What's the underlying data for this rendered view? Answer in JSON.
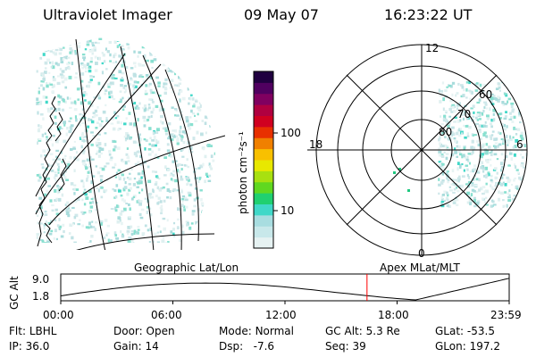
{
  "header": {
    "instrument": "Ultraviolet Imager",
    "date": "09 May 07",
    "time": "16:23:22 UT"
  },
  "colorbar": {
    "unit_label": "photon cm⁻²s⁻¹",
    "ticks": [
      {
        "label": "100",
        "value": 100
      },
      {
        "label": "10",
        "value": 10
      }
    ],
    "colors": [
      "#e6f2f2",
      "#c8e8ea",
      "#a8dde0",
      "#40d8c8",
      "#20d070",
      "#60d820",
      "#a8e010",
      "#e8e800",
      "#f8c000",
      "#f08000",
      "#e83000",
      "#d00020",
      "#b00040",
      "#800060",
      "#500060",
      "#200040"
    ]
  },
  "polar_plot": {
    "clock_labels": [
      {
        "label": "12",
        "mlt": 12
      },
      {
        "label": "18",
        "mlt": 18
      },
      {
        "label": "6",
        "mlt": 6
      },
      {
        "label": "0",
        "mlt": 0
      }
    ],
    "lat_labels": [
      {
        "label": "60",
        "lat": 60
      },
      {
        "label": "70",
        "lat": 70
      },
      {
        "label": "80",
        "lat": 80
      }
    ]
  },
  "timeline": {
    "left_label": "Geographic Lat/Lon",
    "right_label": "Apex MLat/MLT",
    "axis_title": "GC Alt",
    "y_ticks": [
      {
        "label": "9.0",
        "value": 9.0
      },
      {
        "label": "1.8",
        "value": 1.8
      }
    ],
    "x_ticks": [
      "00:00",
      "06:00",
      "12:00",
      "18:00",
      "23:59"
    ],
    "current_time_hours": 16.39
  },
  "footer": {
    "row1": [
      {
        "key": "Flt:",
        "value": "LBHL"
      },
      {
        "key": "Door:",
        "value": "Open"
      },
      {
        "key": "Mode:",
        "value": "Normal"
      },
      {
        "key": "GC Alt:",
        "value": "5.3 Re"
      },
      {
        "key": "GLat:",
        "value": "-53.5"
      }
    ],
    "row2": [
      {
        "key": "IP:",
        "value": "36.0"
      },
      {
        "key": "Gain:",
        "value": "14"
      },
      {
        "key": "Dsp:",
        "value": "-7.6"
      },
      {
        "key": "Seq:",
        "value": "39"
      },
      {
        "key": "GLon:",
        "value": "197.2"
      }
    ]
  }
}
